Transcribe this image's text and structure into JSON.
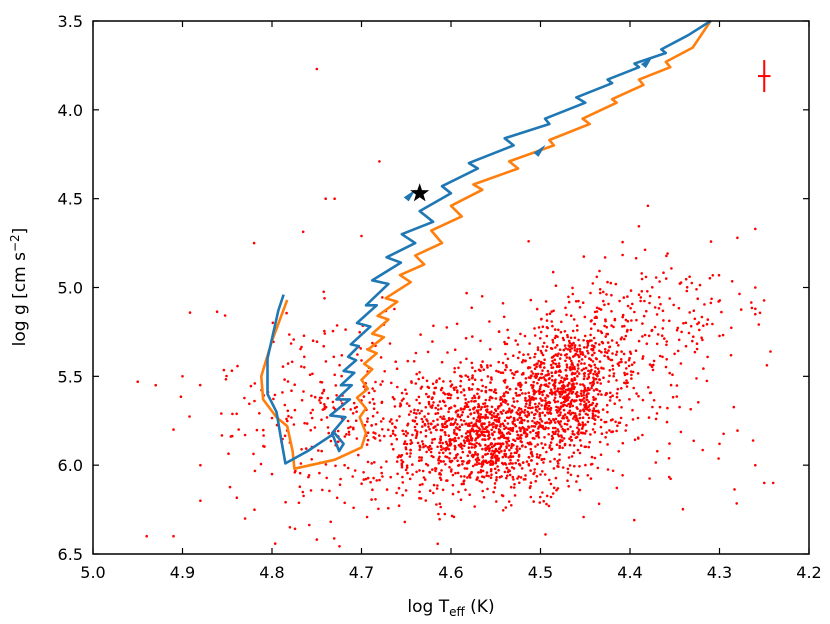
{
  "chart_data": {
    "type": "scatter",
    "title": "",
    "xlabel": "log T",
    "xlabel_sub": "eff",
    "xlabel_unit": " (K)",
    "ylabel": "log g [cm s",
    "ylabel_sup": "−2",
    "ylabel_end": "]",
    "xlim": [
      5.0,
      4.2
    ],
    "ylim": [
      6.5,
      3.5
    ],
    "x_ticks": [
      5.0,
      4.9,
      4.8,
      4.7,
      4.6,
      4.5,
      4.4,
      4.3,
      4.2
    ],
    "x_tick_labels": [
      "5.0",
      "4.9",
      "4.8",
      "4.7",
      "4.6",
      "4.5",
      "4.4",
      "4.3",
      "4.2"
    ],
    "y_ticks": [
      3.5,
      4.0,
      4.5,
      5.0,
      5.5,
      6.0,
      6.5
    ],
    "y_tick_labels": [
      "3.5",
      "4.0",
      "4.5",
      "5.0",
      "5.5",
      "6.0",
      "6.5"
    ],
    "grid": false,
    "colors": {
      "points": "#ff0000",
      "blue_track": "#1f77b4",
      "orange_track": "#ff7f0e",
      "star": "#000000",
      "errorbar": "#ff0000"
    },
    "series": [
      {
        "name": "blue track",
        "kind": "line",
        "x": [
          4.787,
          4.793,
          4.805,
          4.805,
          4.795,
          4.79,
          4.785,
          4.76,
          4.73,
          4.72,
          4.725,
          4.733,
          4.718,
          4.735,
          4.713,
          4.728,
          4.711,
          4.723,
          4.708,
          4.72,
          4.706,
          4.715,
          4.703,
          4.712,
          4.69,
          4.705,
          4.683,
          4.695,
          4.67,
          4.688,
          4.656,
          4.672,
          4.64,
          4.655,
          4.62,
          4.635,
          4.6,
          4.61,
          4.57,
          4.58,
          4.53,
          4.54,
          4.49,
          4.495,
          4.45,
          4.46,
          4.42,
          4.425,
          4.39,
          4.395,
          4.36,
          4.365,
          4.335,
          4.31
        ],
        "y": [
          5.04,
          5.13,
          5.4,
          5.6,
          5.7,
          5.85,
          5.99,
          5.92,
          5.82,
          5.88,
          5.92,
          5.82,
          5.73,
          5.72,
          5.63,
          5.63,
          5.55,
          5.55,
          5.48,
          5.47,
          5.41,
          5.39,
          5.33,
          5.32,
          5.22,
          5.2,
          5.1,
          5.1,
          4.98,
          4.96,
          4.86,
          4.83,
          4.75,
          4.7,
          4.63,
          4.57,
          4.47,
          4.43,
          4.33,
          4.3,
          4.2,
          4.16,
          4.08,
          4.05,
          3.96,
          3.93,
          3.85,
          3.83,
          3.76,
          3.74,
          3.68,
          3.66,
          3.58,
          3.5
        ]
      },
      {
        "name": "orange track",
        "kind": "line",
        "x": [
          4.783,
          4.8,
          4.812,
          4.81,
          4.795,
          4.783,
          4.777,
          4.775,
          4.73,
          4.7,
          4.695,
          4.702,
          4.695,
          4.705,
          4.693,
          4.7,
          4.688,
          4.697,
          4.683,
          4.693,
          4.675,
          4.688,
          4.67,
          4.682,
          4.66,
          4.673,
          4.645,
          4.657,
          4.63,
          4.64,
          4.61,
          4.622,
          4.588,
          4.6,
          4.565,
          4.575,
          4.525,
          4.535,
          4.485,
          4.49,
          4.445,
          4.453,
          4.415,
          4.42,
          4.385,
          4.39,
          4.355,
          4.36,
          4.33,
          4.31
        ],
        "y": [
          5.07,
          5.3,
          5.5,
          5.63,
          5.73,
          5.78,
          5.92,
          6.02,
          5.97,
          5.9,
          5.82,
          5.73,
          5.68,
          5.62,
          5.57,
          5.52,
          5.46,
          5.43,
          5.37,
          5.35,
          5.28,
          5.26,
          5.18,
          5.16,
          5.08,
          5.06,
          4.97,
          4.93,
          4.87,
          4.82,
          4.75,
          4.68,
          4.6,
          4.54,
          4.45,
          4.42,
          4.33,
          4.29,
          4.2,
          4.17,
          4.08,
          4.05,
          3.96,
          3.94,
          3.86,
          3.83,
          3.76,
          3.73,
          3.65,
          3.5
        ]
      }
    ],
    "arrows": [
      {
        "series": "blue track",
        "x": 4.645,
        "y": 4.47
      },
      {
        "series": "blue track",
        "x": 4.5,
        "y": 4.22
      },
      {
        "series": "blue track",
        "x": 4.38,
        "y": 3.72
      }
    ],
    "star": {
      "x": 4.635,
      "y": 4.47
    },
    "error_bar": {
      "x": 4.25,
      "y": 3.81,
      "xerr": 0.007,
      "yerr": 0.09
    },
    "scatter_regions": [
      {
        "cx": 4.47,
        "cy": 5.55,
        "sx": 0.032,
        "sy": 0.18,
        "n": 700
      },
      {
        "cx": 4.56,
        "cy": 5.82,
        "sx": 0.045,
        "sy": 0.16,
        "n": 900
      },
      {
        "cx": 4.55,
        "cy": 5.72,
        "sx": 0.11,
        "sy": 0.27,
        "n": 500
      },
      {
        "cx": 4.4,
        "cy": 5.25,
        "sx": 0.05,
        "sy": 0.2,
        "n": 180
      },
      {
        "cx": 4.33,
        "cy": 5.1,
        "sx": 0.04,
        "sy": 0.16,
        "n": 70
      },
      {
        "cx": 4.76,
        "cy": 5.7,
        "sx": 0.055,
        "sy": 0.33,
        "n": 140
      },
      {
        "cx": 4.65,
        "cy": 5.95,
        "sx": 0.08,
        "sy": 0.2,
        "n": 150
      }
    ],
    "extra_points": [
      [
        4.68,
        4.29
      ],
      [
        4.74,
        4.5
      ],
      [
        4.73,
        4.5
      ],
      [
        4.38,
        4.54
      ],
      [
        4.75,
        3.77
      ],
      [
        4.7,
        4.71
      ],
      [
        4.82,
        4.75
      ],
      [
        4.26,
        4.67
      ],
      [
        4.26,
        5.0
      ],
      [
        4.9,
        5.5
      ],
      [
        4.93,
        5.55
      ],
      [
        4.95,
        5.53
      ],
      [
        4.91,
        5.8
      ],
      [
        4.83,
        5.83
      ],
      [
        4.88,
        6.0
      ],
      [
        4.94,
        6.4
      ],
      [
        4.91,
        6.4
      ],
      [
        4.88,
        6.2
      ],
      [
        4.28,
        4.72
      ],
      [
        4.26,
        5.15
      ],
      [
        4.3,
        5.88
      ],
      [
        4.24,
        6.1
      ],
      [
        4.25,
        6.1
      ],
      [
        4.26,
        6.0
      ],
      [
        4.8,
        6.05
      ],
      [
        4.83,
        6.3
      ],
      [
        4.78,
        6.35
      ]
    ]
  }
}
